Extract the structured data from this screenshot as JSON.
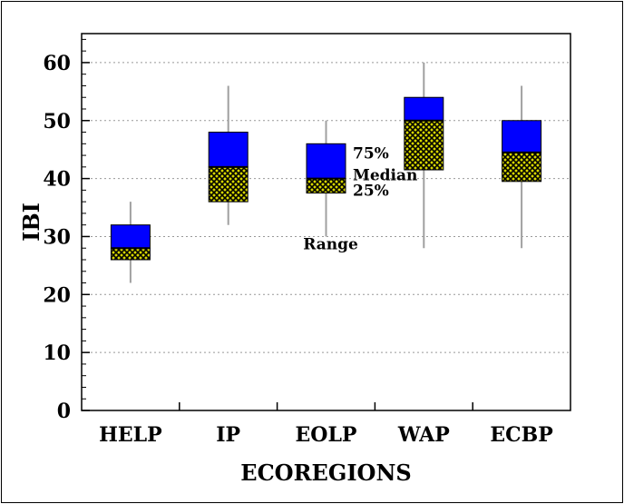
{
  "chart_data": {
    "type": "boxplot",
    "title": "",
    "xlabel": "ECOREGIONS",
    "ylabel": "IBI",
    "ylim": [
      0,
      65
    ],
    "yticks": [
      0,
      10,
      20,
      30,
      40,
      50,
      60
    ],
    "grid": true,
    "categories": [
      "HELP",
      "IP",
      "EOLP",
      "WAP",
      "ECBP"
    ],
    "series": [
      {
        "values": [
          {
            "min": 22,
            "q1": 26,
            "median": 28,
            "q3": 32,
            "max": 36
          },
          {
            "min": 32,
            "q1": 36,
            "median": 42,
            "q3": 48,
            "max": 56
          },
          {
            "min": 30,
            "q1": 37.5,
            "median": 40,
            "q3": 46,
            "max": 50
          },
          {
            "min": 28,
            "q1": 41.5,
            "median": 50,
            "q3": 54,
            "max": 60
          },
          {
            "min": 28,
            "q1": 39.5,
            "median": 44.5,
            "q3": 50,
            "max": 56
          }
        ]
      }
    ],
    "annotations": {
      "q3": "75%",
      "median": "Median",
      "q1": "25%",
      "range": "Range"
    },
    "colors": {
      "upper_box": "#0000ff",
      "lower_box": "#000000",
      "lower_box_pattern": "#d8d800",
      "whisker": "#a0a0a0",
      "grid": "#999999"
    }
  }
}
